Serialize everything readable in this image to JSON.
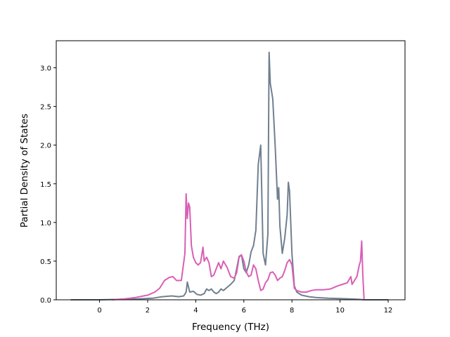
{
  "chart_data": {
    "type": "line",
    "title": "",
    "xlabel": "Frequency (THz)",
    "ylabel": "Partial Density of States",
    "xlim": [
      -1.8,
      12.7
    ],
    "ylim": [
      0,
      3.35
    ],
    "xticks": [
      0,
      2,
      4,
      6,
      8,
      10,
      12
    ],
    "yticks": [
      0.0,
      0.5,
      1.0,
      1.5,
      2.0,
      2.5,
      3.0
    ],
    "xtick_labels": [
      "0",
      "2",
      "4",
      "6",
      "8",
      "10",
      "12"
    ],
    "ytick_labels": [
      "0.0",
      "0.5",
      "1.0",
      "1.5",
      "2.0",
      "2.5",
      "3.0"
    ],
    "grid": false,
    "legend": "none",
    "series": [
      {
        "color": "#708090",
        "x": [
          -1.2,
          0,
          0.8,
          1.5,
          2.2,
          2.6,
          3.0,
          3.3,
          3.5,
          3.6,
          3.65,
          3.75,
          3.9,
          4.05,
          4.2,
          4.35,
          4.45,
          4.55,
          4.65,
          4.75,
          4.85,
          4.95,
          5.05,
          5.15,
          5.3,
          5.45,
          5.6,
          5.7,
          5.8,
          5.9,
          6.0,
          6.1,
          6.2,
          6.3,
          6.4,
          6.5,
          6.6,
          6.7,
          6.8,
          6.9,
          7.0,
          7.05,
          7.1,
          7.2,
          7.3,
          7.4,
          7.45,
          7.5,
          7.6,
          7.7,
          7.8,
          7.85,
          7.9,
          8.0,
          8.1,
          8.2,
          8.4,
          8.7,
          9.0,
          9.5,
          10.0,
          10.5,
          10.8,
          11.0,
          12.0
        ],
        "values": [
          0.0,
          0.0,
          0.005,
          0.01,
          0.02,
          0.04,
          0.05,
          0.04,
          0.05,
          0.1,
          0.23,
          0.1,
          0.11,
          0.07,
          0.06,
          0.08,
          0.14,
          0.12,
          0.14,
          0.1,
          0.08,
          0.1,
          0.14,
          0.12,
          0.16,
          0.2,
          0.25,
          0.4,
          0.56,
          0.58,
          0.4,
          0.35,
          0.45,
          0.62,
          0.7,
          0.9,
          1.75,
          2.0,
          0.6,
          0.45,
          0.85,
          3.2,
          2.8,
          2.6,
          2.0,
          1.3,
          1.45,
          0.95,
          0.6,
          0.8,
          1.1,
          1.52,
          1.4,
          0.6,
          0.18,
          0.1,
          0.06,
          0.04,
          0.03,
          0.02,
          0.015,
          0.01,
          0.005,
          0.0,
          0.0
        ]
      },
      {
        "color": "#d95fb5",
        "x": [
          0.5,
          1.0,
          1.5,
          2.0,
          2.3,
          2.5,
          2.7,
          2.9,
          3.05,
          3.2,
          3.4,
          3.55,
          3.6,
          3.65,
          3.7,
          3.75,
          3.82,
          3.9,
          4.0,
          4.1,
          4.2,
          4.3,
          4.35,
          4.45,
          4.55,
          4.65,
          4.75,
          4.85,
          4.95,
          5.05,
          5.15,
          5.3,
          5.45,
          5.6,
          5.7,
          5.8,
          5.9,
          6.0,
          6.1,
          6.2,
          6.3,
          6.4,
          6.5,
          6.6,
          6.7,
          6.8,
          6.9,
          7.0,
          7.1,
          7.2,
          7.3,
          7.4,
          7.5,
          7.6,
          7.7,
          7.8,
          7.9,
          8.0,
          8.1,
          8.2,
          8.4,
          8.6,
          8.8,
          9.0,
          9.3,
          9.6,
          9.9,
          10.1,
          10.3,
          10.45,
          10.5,
          10.6,
          10.7,
          10.8,
          10.85,
          10.9,
          10.95,
          11.0
        ],
        "values": [
          0.0,
          0.01,
          0.03,
          0.06,
          0.1,
          0.15,
          0.25,
          0.29,
          0.3,
          0.25,
          0.25,
          0.6,
          1.37,
          1.05,
          1.25,
          1.2,
          0.7,
          0.55,
          0.48,
          0.45,
          0.48,
          0.68,
          0.5,
          0.55,
          0.48,
          0.3,
          0.32,
          0.4,
          0.48,
          0.4,
          0.5,
          0.42,
          0.3,
          0.28,
          0.35,
          0.55,
          0.58,
          0.5,
          0.36,
          0.3,
          0.32,
          0.45,
          0.4,
          0.25,
          0.12,
          0.14,
          0.22,
          0.26,
          0.35,
          0.36,
          0.32,
          0.25,
          0.28,
          0.3,
          0.38,
          0.48,
          0.52,
          0.45,
          0.15,
          0.12,
          0.1,
          0.1,
          0.12,
          0.13,
          0.13,
          0.14,
          0.18,
          0.2,
          0.22,
          0.3,
          0.2,
          0.25,
          0.3,
          0.45,
          0.5,
          0.76,
          0.3,
          0.0
        ]
      }
    ]
  }
}
